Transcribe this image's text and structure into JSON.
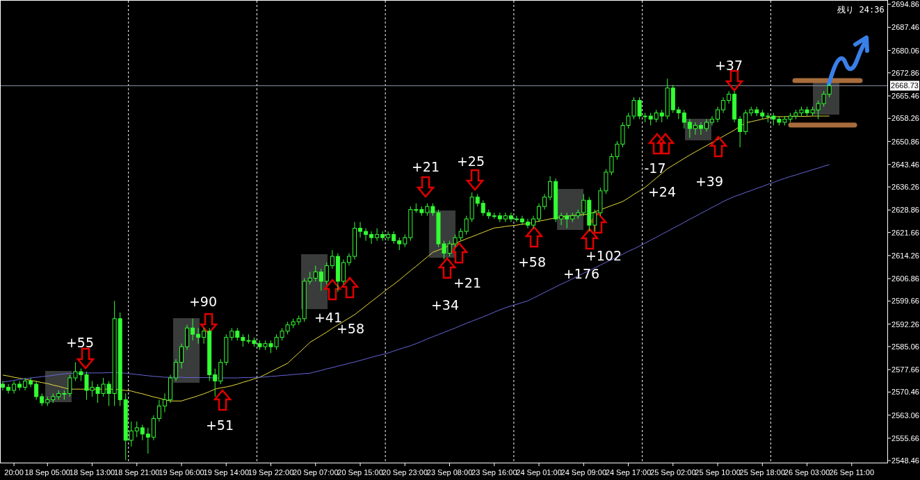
{
  "chart_data": {
    "type": "candlestick",
    "color": "#33ff33",
    "categories": [
      null,
      null,
      "20:00",
      null,
      null,
      null,
      null,
      null,
      "18 Sep 05:00",
      null,
      null,
      null,
      null,
      null,
      null,
      null,
      "18 Sep 13:00",
      null,
      null,
      null,
      null,
      null,
      null,
      null,
      "18 Sep 21:00",
      null,
      null,
      null,
      null,
      null,
      null,
      null,
      "19 Sep 06:00",
      null,
      null,
      null,
      null,
      null,
      null,
      null,
      "19 Sep 14:00",
      null,
      null,
      null,
      null,
      null,
      null,
      null,
      "19 Sep 22:00",
      null,
      null,
      null,
      null,
      null,
      null,
      null,
      "20 Sep 07:00",
      null,
      null,
      null,
      null,
      null,
      null,
      null,
      "20 Sep 15:00",
      null,
      null,
      null,
      null,
      null,
      null,
      null,
      "20 Sep 23:00",
      null,
      null,
      null,
      null,
      null,
      null,
      null,
      "23 Sep 08:00",
      null,
      null,
      null,
      null,
      null,
      null,
      null,
      "23 Sep 16:00",
      null,
      null,
      null,
      null,
      null,
      null,
      null,
      "24 Sep 01:00",
      null,
      null,
      null,
      null,
      null,
      null,
      null,
      "24 Sep 09:00",
      null,
      null,
      null,
      null,
      null,
      null,
      null,
      "24 Sep 17:00",
      null,
      null,
      null,
      null,
      null,
      null,
      null,
      "25 Sep 02:00",
      null,
      null,
      null,
      null,
      null,
      null,
      null,
      "25 Sep 10:00",
      null,
      null,
      null,
      null,
      null,
      null,
      null,
      "25 Sep 18:00",
      null,
      null,
      null,
      null,
      null,
      null,
      null,
      "26 Sep 03:00",
      null,
      null,
      null,
      null,
      null,
      null,
      null,
      "26 Sep 11:00",
      null,
      null,
      null,
      null,
      null,
      null
    ],
    "ohlc": [
      [
        2573,
        2574,
        2571,
        2572
      ],
      [
        2572,
        2573,
        2570,
        2571
      ],
      [
        2571,
        2574,
        2570,
        2573
      ],
      [
        2573,
        2574,
        2571,
        2572
      ],
      [
        2572,
        2575,
        2571,
        2574
      ],
      [
        2574,
        2575,
        2572,
        2573
      ],
      [
        2573,
        2574,
        2568,
        2569
      ],
      [
        2569,
        2570,
        2566,
        2567
      ],
      [
        2567,
        2569,
        2566,
        2568
      ],
      [
        2568,
        2570,
        2567,
        2569
      ],
      [
        2569,
        2571,
        2568,
        2570
      ],
      [
        2570,
        2571,
        2568,
        2570
      ],
      [
        2570,
        2576,
        2569,
        2575
      ],
      [
        2575,
        2580,
        2574,
        2577
      ],
      [
        2577,
        2578,
        2574,
        2576
      ],
      [
        2576,
        2577,
        2568,
        2571
      ],
      [
        2571,
        2574,
        2569,
        2572
      ],
      [
        2572,
        2573,
        2567,
        2570
      ],
      [
        2570,
        2575,
        2569,
        2573
      ],
      [
        2573,
        2574,
        2566,
        2570
      ],
      [
        2570,
        2599.7,
        2566,
        2594
      ],
      [
        2594,
        2596,
        2566,
        2568
      ],
      [
        2568,
        2570,
        2548.6,
        2555
      ],
      [
        2555,
        2561,
        2553,
        2558
      ],
      [
        2558,
        2561,
        2556,
        2559
      ],
      [
        2559,
        2560,
        2555,
        2557
      ],
      [
        2557,
        2559,
        2550.7,
        2556
      ],
      [
        2556,
        2563,
        2555,
        2562
      ],
      [
        2562,
        2568,
        2561,
        2566
      ],
      [
        2566,
        2570,
        2564,
        2568
      ],
      [
        2568,
        2576,
        2567,
        2575
      ],
      [
        2575,
        2581,
        2574,
        2580
      ],
      [
        2580,
        2586,
        2578,
        2585
      ],
      [
        2585,
        2592,
        2584,
        2591
      ],
      [
        2591,
        2594,
        2587,
        2589
      ],
      [
        2589,
        2591,
        2586,
        2588
      ],
      [
        2588,
        2591,
        2586,
        2590
      ],
      [
        2590,
        2591,
        2574,
        2576
      ],
      [
        2576,
        2578,
        2569,
        2574
      ],
      [
        2574,
        2581,
        2573,
        2580
      ],
      [
        2580,
        2589,
        2579,
        2588
      ],
      [
        2588,
        2591,
        2587,
        2590
      ],
      [
        2590,
        2591,
        2587,
        2588
      ],
      [
        2588,
        2589,
        2585,
        2587
      ],
      [
        2587,
        2589,
        2586,
        2587
      ],
      [
        2587,
        2588,
        2585,
        2586
      ],
      [
        2586,
        2587,
        2584,
        2585
      ],
      [
        2585,
        2587,
        2584,
        2586
      ],
      [
        2586,
        2587,
        2583,
        2585
      ],
      [
        2585,
        2589,
        2584,
        2588
      ],
      [
        2588,
        2591,
        2587,
        2590
      ],
      [
        2590,
        2593,
        2589,
        2592
      ],
      [
        2592,
        2594,
        2591,
        2593
      ],
      [
        2593,
        2595,
        2592,
        2594
      ],
      [
        2594,
        2607,
        2593,
        2606
      ],
      [
        2606,
        2609,
        2605,
        2607
      ],
      [
        2607,
        2611,
        2606,
        2609
      ],
      [
        2609,
        2610,
        2603,
        2606
      ],
      [
        2606,
        2612,
        2605,
        2611
      ],
      [
        2611,
        2616,
        2610,
        2614
      ],
      [
        2614,
        2615,
        2602.6,
        2606
      ],
      [
        2606,
        2613,
        2605,
        2612
      ],
      [
        2612,
        2615,
        2611,
        2614
      ],
      [
        2614,
        2625,
        2613,
        2623
      ],
      [
        2623,
        2625,
        2620,
        2622
      ],
      [
        2622,
        2623,
        2619,
        2621
      ],
      [
        2621,
        2622,
        2618,
        2620
      ],
      [
        2620,
        2623,
        2619,
        2621
      ],
      [
        2621,
        2622,
        2619,
        2620
      ],
      [
        2620,
        2622,
        2619,
        2621
      ],
      [
        2621,
        2622,
        2618,
        2619
      ],
      [
        2619,
        2620,
        2616,
        2618
      ],
      [
        2618,
        2621,
        2617,
        2620
      ],
      [
        2620,
        2630,
        2619,
        2629
      ],
      [
        2629,
        2631,
        2628,
        2629
      ],
      [
        2629,
        2630,
        2627,
        2628
      ],
      [
        2628,
        2631,
        2627,
        2630
      ],
      [
        2630,
        2631,
        2627,
        2628
      ],
      [
        2628,
        2629,
        2617,
        2618
      ],
      [
        2618,
        2619,
        2613,
        2615
      ],
      [
        2615,
        2619,
        2614,
        2618
      ],
      [
        2618,
        2621,
        2617,
        2620
      ],
      [
        2620,
        2623,
        2619,
        2622
      ],
      [
        2622,
        2627,
        2621,
        2626
      ],
      [
        2626,
        2634.5,
        2625,
        2633
      ],
      [
        2633,
        2634,
        2630,
        2631
      ],
      [
        2631,
        2632,
        2627,
        2628
      ],
      [
        2628,
        2629,
        2626,
        2627
      ],
      [
        2627,
        2628,
        2626,
        2627
      ],
      [
        2627,
        2628,
        2625,
        2626
      ],
      [
        2626,
        2628,
        2625,
        2627
      ],
      [
        2627,
        2628,
        2625,
        2626
      ],
      [
        2626,
        2627,
        2625,
        2626
      ],
      [
        2626,
        2627,
        2624,
        2625
      ],
      [
        2625,
        2626,
        2623,
        2624
      ],
      [
        2624,
        2627,
        2623,
        2626
      ],
      [
        2626,
        2631,
        2625,
        2630
      ],
      [
        2630,
        2634,
        2629,
        2633
      ],
      [
        2633,
        2639.7,
        2632,
        2638
      ],
      [
        2638,
        2639,
        2625,
        2626
      ],
      [
        2626,
        2628,
        2624,
        2627
      ],
      [
        2627,
        2628,
        2623,
        2626
      ],
      [
        2626,
        2628,
        2625,
        2627
      ],
      [
        2627,
        2629,
        2626,
        2628
      ],
      [
        2628,
        2634,
        2627,
        2632
      ],
      [
        2632,
        2633,
        2622,
        2624
      ],
      [
        2624,
        2629,
        2622,
        2628
      ],
      [
        2628,
        2636,
        2627,
        2635
      ],
      [
        2635,
        2642,
        2634,
        2641
      ],
      [
        2641,
        2647,
        2640,
        2646
      ],
      [
        2646,
        2651,
        2645,
        2650
      ],
      [
        2650,
        2657,
        2649,
        2656
      ],
      [
        2656,
        2660,
        2655,
        2659
      ],
      [
        2659,
        2665,
        2658,
        2664
      ],
      [
        2664,
        2665,
        2658,
        2659
      ],
      [
        2659,
        2660,
        2657,
        2659
      ],
      [
        2659,
        2660,
        2656,
        2658
      ],
      [
        2658,
        2661,
        2657,
        2660
      ],
      [
        2660,
        2661,
        2657,
        2659
      ],
      [
        2659,
        2671,
        2658,
        2668
      ],
      [
        2668,
        2669,
        2660,
        2661
      ],
      [
        2661,
        2662,
        2658,
        2660
      ],
      [
        2660,
        2661,
        2655,
        2657
      ],
      [
        2657,
        2658,
        2652,
        2655
      ],
      [
        2655,
        2657,
        2653,
        2656
      ],
      [
        2656,
        2657,
        2653,
        2655
      ],
      [
        2655,
        2658,
        2654,
        2657
      ],
      [
        2657,
        2659,
        2656,
        2658
      ],
      [
        2658,
        2662,
        2657,
        2661
      ],
      [
        2661,
        2665,
        2660,
        2664
      ],
      [
        2664,
        2667,
        2663,
        2666
      ],
      [
        2666,
        2667,
        2657,
        2658
      ],
      [
        2658,
        2659,
        2649,
        2654
      ],
      [
        2654,
        2661,
        2653,
        2660
      ],
      [
        2660,
        2662,
        2659,
        2661
      ],
      [
        2661,
        2662,
        2659,
        2660
      ],
      [
        2660,
        2661,
        2658,
        2659
      ],
      [
        2659,
        2660,
        2657,
        2659
      ],
      [
        2659,
        2660,
        2656,
        2658
      ],
      [
        2658,
        2659,
        2656,
        2657
      ],
      [
        2657,
        2659,
        2656,
        2658
      ],
      [
        2658,
        2660,
        2657,
        2659
      ],
      [
        2659,
        2661,
        2658,
        2660
      ],
      [
        2660,
        2662,
        2659,
        2661
      ],
      [
        2661,
        2662,
        2659,
        2660
      ],
      [
        2660,
        2662,
        2659,
        2661
      ],
      [
        2661,
        2664,
        2658,
        2663
      ],
      [
        2663,
        2667,
        2662,
        2666
      ],
      [
        2666,
        2669.5,
        2665,
        2668.73
      ],
      null,
      null,
      null,
      null,
      null,
      null,
      null,
      null,
      null,
      null
    ],
    "series": [
      {
        "type": "line",
        "color": "#e8dc3c",
        "values": [
          2575.9,
          2575.6,
          2575.2,
          2574.9,
          2574.6,
          2574.2,
          2573.9,
          2573.5,
          2573.2,
          2572.7,
          2572.3,
          2571.8,
          2571.4,
          2571.4,
          2571.4,
          2571.4,
          2571.4,
          2571.4,
          2571.4,
          2571.4,
          2571.4,
          2571.2,
          2571.0,
          2570.8,
          2570.3,
          2569.9,
          2569.4,
          2568.9,
          2568.5,
          2568.0,
          2567.6,
          2567.6,
          2567.6,
          2568.2,
          2568.7,
          2569.3,
          2569.9,
          2570.6,
          2571.4,
          2571.8,
          2572.1,
          2572.5,
          2573.0,
          2573.6,
          2574.1,
          2574.7,
          2575.2,
          2576.1,
          2577.0,
          2577.9,
          2578.8,
          2579.7,
          2581.4,
          2583.0,
          2584.7,
          2586.4,
          2587.5,
          2588.6,
          2589.7,
          2590.9,
          2592.0,
          2593.1,
          2594.2,
          2595.3,
          2596.7,
          2598.1,
          2599.5,
          2600.9,
          2602.3,
          2603.7,
          2605.0,
          2606.4,
          2607.9,
          2609.4,
          2610.8,
          2612.3,
          2613.8,
          2615.3,
          2616.0,
          2616.7,
          2617.5,
          2618.2,
          2618.9,
          2619.6,
          2620.3,
          2621.0,
          2621.7,
          2622.4,
          2623.1,
          2623.3,
          2623.6,
          2623.8,
          2624.0,
          2624.3,
          2624.5,
          2624.9,
          2625.3,
          2625.6,
          2626.0,
          2626.3,
          2626.7,
          2626.9,
          2627.1,
          2627.2,
          2627.4,
          2627.6,
          2628.3,
          2628.9,
          2629.6,
          2630.3,
          2630.9,
          2631.6,
          2632.7,
          2633.9,
          2635.0,
          2636.1,
          2637.6,
          2639.1,
          2640.6,
          2642.1,
          2643.2,
          2644.3,
          2645.4,
          2646.5,
          2647.5,
          2648.5,
          2649.5,
          2650.5,
          2651.5,
          2652.5,
          2653.5,
          2654.5,
          2655.7,
          2656.8,
          2657.2,
          2657.6,
          2658.0,
          2658.4,
          2658.8,
          2658.8,
          2658.8,
          2658.9,
          2658.9,
          2658.9,
          2658.9,
          2659.0,
          2659.0,
          2659.0,
          2659.0,
          null,
          null,
          null,
          null,
          null,
          null,
          null,
          null,
          null,
          null
        ]
      },
      {
        "type": "line",
        "color": "#6666d8",
        "values": [
          2573.7,
          2573.9,
          2574.2,
          2574.5,
          2574.7,
          2575.0,
          2575.2,
          2575.4,
          2575.6,
          2575.8,
          2576.1,
          2576.3,
          2576.5,
          2576.5,
          2576.5,
          2576.6,
          2576.6,
          2576.6,
          2576.6,
          2576.7,
          2576.7,
          2576.7,
          2576.5,
          2576.3,
          2576.1,
          2575.9,
          2575.7,
          2575.5,
          2575.4,
          2575.2,
          2575.2,
          2575.2,
          2575.2,
          2575.1,
          2575.1,
          2575.1,
          2575.1,
          2575.1,
          2575.0,
          2575.0,
          2575.0,
          2575.0,
          2575.0,
          2575.1,
          2575.1,
          2575.2,
          2575.2,
          2575.3,
          2575.5,
          2575.6,
          2575.8,
          2575.9,
          2576.1,
          2576.2,
          2576.4,
          2576.5,
          2577.0,
          2577.4,
          2577.9,
          2578.3,
          2578.8,
          2579.2,
          2579.7,
          2580.1,
          2580.6,
          2581.1,
          2581.6,
          2582.1,
          2582.5,
          2583.0,
          2583.6,
          2584.2,
          2584.8,
          2585.3,
          2586.0,
          2586.7,
          2587.5,
          2588.2,
          2588.9,
          2589.6,
          2590.3,
          2591.0,
          2591.8,
          2592.5,
          2593.2,
          2593.9,
          2594.6,
          2595.3,
          2596.1,
          2596.8,
          2597.5,
          2598.1,
          2598.6,
          2599.2,
          2599.7,
          2600.6,
          2601.5,
          2602.4,
          2603.3,
          2604.2,
          2605.1,
          2605.9,
          2606.8,
          2607.7,
          2608.6,
          2609.4,
          2610.3,
          2611.2,
          2612.1,
          2612.9,
          2613.8,
          2614.7,
          2615.6,
          2616.4,
          2617.3,
          2618.2,
          2619.2,
          2620.1,
          2621.1,
          2622.0,
          2623.0,
          2623.9,
          2624.9,
          2625.9,
          2626.8,
          2627.8,
          2628.7,
          2629.7,
          2630.6,
          2631.6,
          2632.4,
          2633.2,
          2633.8,
          2634.5,
          2635.1,
          2635.8,
          2636.4,
          2637.1,
          2637.7,
          2638.4,
          2639.0,
          2639.6,
          2640.1,
          2640.7,
          2641.2,
          2641.8,
          2642.3,
          2642.9,
          2643.4,
          null,
          null,
          null,
          null,
          null,
          null,
          null,
          null,
          null,
          null
        ]
      }
    ],
    "ylim": [
      2547.6,
      2696.0
    ],
    "yticks": [
      2548.46,
      2555.66,
      2563.06,
      2570.46,
      2577.66,
      2585.06,
      2592.26,
      2599.66,
      2606.86,
      2614.26,
      2621.66,
      2628.86,
      2636.26,
      2643.46,
      2650.86,
      2658.26,
      2665.46,
      2672.86,
      2680.06,
      2687.46,
      2694.86
    ],
    "ref_lines": [
      {
        "axis": "y",
        "value": 2668.73,
        "label": "2668.73",
        "color": "#8c96a8",
        "line_style": "solid"
      }
    ],
    "annotations": [
      "残り 24:36",
      "+55",
      "+90",
      "+51",
      "+41",
      "+58",
      "+34",
      "+21",
      "+25",
      "+21",
      "+58",
      "+176",
      "+102",
      "-17",
      "+24",
      "+39",
      "+37"
    ]
  }
}
